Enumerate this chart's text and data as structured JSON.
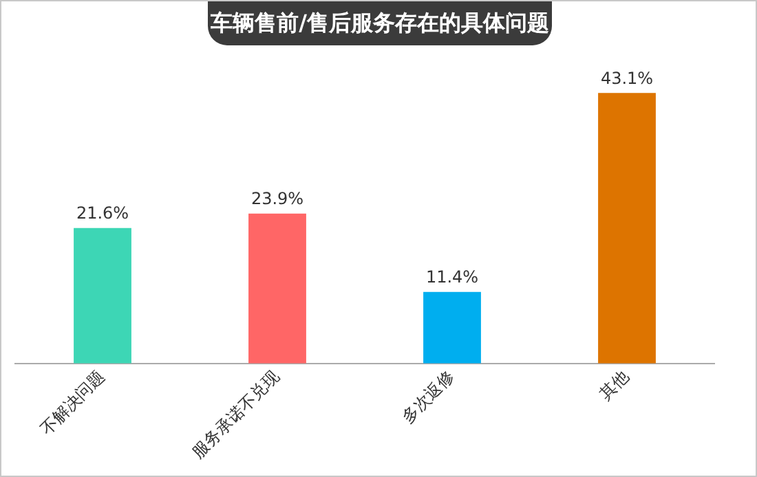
{
  "chart_data": {
    "type": "bar",
    "title": "车辆售前/售后服务存在的具体问题",
    "categories": [
      "不解决问题",
      "服务承诺不兑现",
      "多次返修",
      "其他"
    ],
    "values": [
      21.6,
      23.9,
      11.4,
      43.1
    ],
    "colors": [
      "#3dd6b5",
      "#ff6666",
      "#00aeef",
      "#dd7400"
    ],
    "value_labels": [
      "21.6%",
      "23.9%",
      "11.4%",
      "43.1%"
    ],
    "tick_labels": "x",
    "grid": false,
    "legend": false
  }
}
